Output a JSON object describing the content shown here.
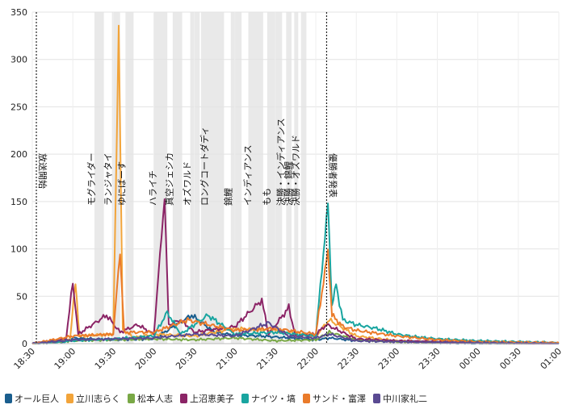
{
  "chart_data": {
    "type": "line",
    "title": "",
    "xlabel": "",
    "ylabel": "",
    "ylim": [
      0,
      350
    ],
    "yticks": [
      0,
      50,
      100,
      150,
      200,
      250,
      300,
      350
    ],
    "xlim": [
      "18:30",
      "01:00"
    ],
    "xticks": [
      "18:30",
      "19:00",
      "19:30",
      "20:00",
      "20:30",
      "21:00",
      "21:30",
      "22:00",
      "22:30",
      "23:00",
      "23:30",
      "00:00",
      "00:30",
      "01:00"
    ],
    "grid": true,
    "legend_position": "bottom",
    "markers": [
      {
        "time": "18:33",
        "label": "放送開始"
      },
      {
        "time": "22:08",
        "label": "優勝者発表"
      }
    ],
    "bands": [
      {
        "start": "19:16",
        "end": "19:23",
        "label": "モグライダー"
      },
      {
        "start": "19:29",
        "end": "19:35",
        "label": "ランジャタイ"
      },
      {
        "start": "19:39",
        "end": "19:45",
        "label": "ゆにばーす"
      },
      {
        "start": "20:00",
        "end": "20:10",
        "label": "ハライチ"
      },
      {
        "start": "20:14",
        "end": "20:21",
        "label": "真空ジェシカ"
      },
      {
        "start": "20:27",
        "end": "20:34",
        "label": "オズワルド"
      },
      {
        "start": "20:35",
        "end": "20:52",
        "label": "ロングコートダディ"
      },
      {
        "start": "20:57",
        "end": "21:05",
        "label": "錦鯉"
      },
      {
        "start": "21:10",
        "end": "21:21",
        "label": "インディアンス"
      },
      {
        "start": "21:24",
        "end": "21:35",
        "label": "もも"
      },
      {
        "start": "21:38",
        "end": "21:42",
        "label": "決勝・インディアンス"
      },
      {
        "start": "21:44",
        "end": "21:47",
        "label": "決勝・錦鯉"
      },
      {
        "start": "21:49",
        "end": "21:53",
        "label": "決勝・オズワルド"
      }
    ],
    "series": [
      {
        "name": "オール巨人",
        "color": "#1a5e8e",
        "points": [
          [
            "18:30",
            0
          ],
          [
            "18:55",
            2
          ],
          [
            "19:00",
            6
          ],
          [
            "19:30",
            4
          ],
          [
            "20:00",
            5
          ],
          [
            "20:28",
            30
          ],
          [
            "20:45",
            12
          ],
          [
            "21:00",
            9
          ],
          [
            "21:20",
            8
          ],
          [
            "21:40",
            6
          ],
          [
            "22:00",
            4
          ],
          [
            "22:10",
            6
          ],
          [
            "22:30",
            3
          ],
          [
            "23:00",
            2
          ],
          [
            "23:30",
            1
          ],
          [
            "00:00",
            0
          ],
          [
            "01:00",
            0
          ]
        ]
      },
      {
        "name": "立川志らく",
        "color": "#f2a43a",
        "points": [
          [
            "18:30",
            0
          ],
          [
            "18:58",
            5
          ],
          [
            "19:02",
            65
          ],
          [
            "19:05",
            8
          ],
          [
            "19:30",
            10
          ],
          [
            "19:34",
            335
          ],
          [
            "19:37",
            15
          ],
          [
            "19:45",
            6
          ],
          [
            "20:00",
            10
          ],
          [
            "20:30",
            8
          ],
          [
            "21:00",
            16
          ],
          [
            "21:30",
            14
          ],
          [
            "22:00",
            8
          ],
          [
            "22:10",
            25
          ],
          [
            "22:30",
            8
          ],
          [
            "23:00",
            3
          ],
          [
            "23:30",
            2
          ],
          [
            "00:00",
            1
          ],
          [
            "01:00",
            0
          ]
        ]
      },
      {
        "name": "松本人志",
        "color": "#79a846",
        "points": [
          [
            "18:30",
            0
          ],
          [
            "19:00",
            3
          ],
          [
            "19:30",
            4
          ],
          [
            "20:00",
            5
          ],
          [
            "20:30",
            4
          ],
          [
            "21:00",
            6
          ],
          [
            "21:30",
            3
          ],
          [
            "22:00",
            4
          ],
          [
            "22:10",
            12
          ],
          [
            "22:30",
            4
          ],
          [
            "23:00",
            2
          ],
          [
            "00:00",
            1
          ],
          [
            "01:00",
            0
          ]
        ]
      },
      {
        "name": "上沼恵美子",
        "color": "#8b2466",
        "points": [
          [
            "18:30",
            0
          ],
          [
            "18:55",
            5
          ],
          [
            "19:00",
            65
          ],
          [
            "19:04",
            10
          ],
          [
            "19:25",
            30
          ],
          [
            "19:35",
            12
          ],
          [
            "19:48",
            20
          ],
          [
            "20:00",
            10
          ],
          [
            "20:08",
            155
          ],
          [
            "20:11",
            20
          ],
          [
            "20:20",
            25
          ],
          [
            "20:30",
            12
          ],
          [
            "21:00",
            18
          ],
          [
            "21:20",
            46
          ],
          [
            "21:25",
            10
          ],
          [
            "21:40",
            38
          ],
          [
            "21:45",
            8
          ],
          [
            "22:00",
            10
          ],
          [
            "22:08",
            20
          ],
          [
            "22:30",
            5
          ],
          [
            "23:00",
            3
          ],
          [
            "23:30",
            2
          ],
          [
            "00:00",
            1
          ],
          [
            "01:00",
            0
          ]
        ]
      },
      {
        "name": "ナイツ・塙",
        "color": "#19a5a0",
        "points": [
          [
            "18:30",
            0
          ],
          [
            "19:00",
            3
          ],
          [
            "19:30",
            5
          ],
          [
            "20:00",
            8
          ],
          [
            "20:10",
            33
          ],
          [
            "20:20",
            10
          ],
          [
            "20:40",
            30
          ],
          [
            "21:00",
            10
          ],
          [
            "21:30",
            12
          ],
          [
            "22:00",
            8
          ],
          [
            "22:09",
            148
          ],
          [
            "22:12",
            40
          ],
          [
            "22:15",
            62
          ],
          [
            "22:20",
            25
          ],
          [
            "22:30",
            20
          ],
          [
            "22:45",
            16
          ],
          [
            "23:00",
            10
          ],
          [
            "23:15",
            7
          ],
          [
            "23:30",
            5
          ],
          [
            "00:00",
            3
          ],
          [
            "00:30",
            2
          ],
          [
            "01:00",
            1
          ]
        ]
      },
      {
        "name": "サンド・富澤",
        "color": "#ea7b2a",
        "points": [
          [
            "18:30",
            0
          ],
          [
            "19:00",
            8
          ],
          [
            "19:30",
            10
          ],
          [
            "19:35",
            98
          ],
          [
            "19:38",
            12
          ],
          [
            "20:00",
            12
          ],
          [
            "20:25",
            25
          ],
          [
            "21:00",
            14
          ],
          [
            "21:30",
            16
          ],
          [
            "22:00",
            10
          ],
          [
            "22:09",
            98
          ],
          [
            "22:12",
            30
          ],
          [
            "22:20",
            18
          ],
          [
            "22:30",
            14
          ],
          [
            "23:00",
            8
          ],
          [
            "23:30",
            4
          ],
          [
            "00:00",
            2
          ],
          [
            "01:00",
            1
          ]
        ]
      },
      {
        "name": "中川家礼二",
        "color": "#5a4a92",
        "points": [
          [
            "18:30",
            0
          ],
          [
            "19:00",
            4
          ],
          [
            "19:30",
            5
          ],
          [
            "20:00",
            6
          ],
          [
            "20:30",
            10
          ],
          [
            "21:00",
            8
          ],
          [
            "21:25",
            22
          ],
          [
            "21:40",
            8
          ],
          [
            "22:00",
            6
          ],
          [
            "22:10",
            10
          ],
          [
            "22:30",
            3
          ],
          [
            "23:00",
            2
          ],
          [
            "00:00",
            1
          ],
          [
            "01:00",
            0
          ]
        ]
      }
    ]
  }
}
